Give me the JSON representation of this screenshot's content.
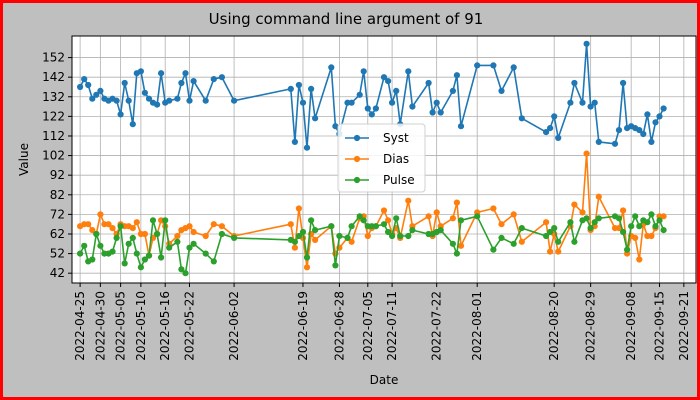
{
  "chart_data": {
    "type": "line",
    "title": "Using command line argument of 91",
    "xlabel": "Date",
    "ylabel": "Value",
    "ylim": [
      37,
      163
    ],
    "xlim": [
      "2022-04-23",
      "2022-09-24"
    ],
    "y_ticks": [
      42,
      52,
      62,
      72,
      82,
      92,
      102,
      112,
      122,
      132,
      142,
      152
    ],
    "x_ticks": [
      "2022-04-25",
      "2022-04-30",
      "2022-05-05",
      "2022-05-10",
      "2022-05-16",
      "2022-05-22",
      "2022-06-02",
      "2022-06-19",
      "2022-06-28",
      "2022-07-05",
      "2022-07-11",
      "2022-07-22",
      "2022-08-01",
      "2022-08-20",
      "2022-08-29",
      "2022-09-08",
      "2022-09-15",
      "2022-09-21"
    ],
    "grid": true,
    "legend_position": "center",
    "series": [
      {
        "name": "Syst",
        "color": "#1f77b4",
        "points": [
          [
            "2022-04-25",
            137
          ],
          [
            "2022-04-26",
            141
          ],
          [
            "2022-04-27",
            138
          ],
          [
            "2022-04-28",
            131
          ],
          [
            "2022-04-29",
            133
          ],
          [
            "2022-04-30",
            135
          ],
          [
            "2022-05-01",
            131
          ],
          [
            "2022-05-02",
            130
          ],
          [
            "2022-05-03",
            131
          ],
          [
            "2022-05-04",
            130
          ],
          [
            "2022-05-05",
            123
          ],
          [
            "2022-05-06",
            139
          ],
          [
            "2022-05-07",
            130
          ],
          [
            "2022-05-08",
            118
          ],
          [
            "2022-05-09",
            144
          ],
          [
            "2022-05-10",
            145
          ],
          [
            "2022-05-11",
            134
          ],
          [
            "2022-05-12",
            131
          ],
          [
            "2022-05-13",
            129
          ],
          [
            "2022-05-14",
            128
          ],
          [
            "2022-05-15",
            144
          ],
          [
            "2022-05-16",
            129
          ],
          [
            "2022-05-17",
            130
          ],
          [
            "2022-05-19",
            131
          ],
          [
            "2022-05-20",
            139
          ],
          [
            "2022-05-21",
            144
          ],
          [
            "2022-05-22",
            130
          ],
          [
            "2022-05-23",
            140
          ],
          [
            "2022-05-26",
            130
          ],
          [
            "2022-05-28",
            141
          ],
          [
            "2022-05-30",
            142
          ],
          [
            "2022-06-02",
            130
          ],
          [
            "2022-06-16",
            136
          ],
          [
            "2022-06-17",
            109
          ],
          [
            "2022-06-18",
            138
          ],
          [
            "2022-06-19",
            129
          ],
          [
            "2022-06-20",
            106
          ],
          [
            "2022-06-21",
            136
          ],
          [
            "2022-06-22",
            121
          ],
          [
            "2022-06-26",
            147
          ],
          [
            "2022-06-27",
            117
          ],
          [
            "2022-06-28",
            113
          ],
          [
            "2022-06-30",
            129
          ],
          [
            "2022-07-01",
            129
          ],
          [
            "2022-07-03",
            133
          ],
          [
            "2022-07-04",
            145
          ],
          [
            "2022-07-05",
            126
          ],
          [
            "2022-07-06",
            123
          ],
          [
            "2022-07-07",
            126
          ],
          [
            "2022-07-09",
            142
          ],
          [
            "2022-07-10",
            140
          ],
          [
            "2022-07-11",
            129
          ],
          [
            "2022-07-12",
            135
          ],
          [
            "2022-07-13",
            118
          ],
          [
            "2022-07-15",
            145
          ],
          [
            "2022-07-16",
            127
          ],
          [
            "2022-07-20",
            139
          ],
          [
            "2022-07-21",
            124
          ],
          [
            "2022-07-22",
            129
          ],
          [
            "2022-07-23",
            124
          ],
          [
            "2022-07-26",
            135
          ],
          [
            "2022-07-27",
            143
          ],
          [
            "2022-07-28",
            117
          ],
          [
            "2022-08-01",
            148
          ],
          [
            "2022-08-05",
            148
          ],
          [
            "2022-08-07",
            135
          ],
          [
            "2022-08-10",
            147
          ],
          [
            "2022-08-12",
            121
          ],
          [
            "2022-08-18",
            114
          ],
          [
            "2022-08-19",
            116
          ],
          [
            "2022-08-20",
            122
          ],
          [
            "2022-08-21",
            111
          ],
          [
            "2022-08-24",
            129
          ],
          [
            "2022-08-25",
            139
          ],
          [
            "2022-08-27",
            129
          ],
          [
            "2022-08-28",
            159
          ],
          [
            "2022-08-29",
            127
          ],
          [
            "2022-08-30",
            129
          ],
          [
            "2022-08-31",
            109
          ],
          [
            "2022-09-04",
            108
          ],
          [
            "2022-09-05",
            115
          ],
          [
            "2022-09-06",
            139
          ],
          [
            "2022-09-07",
            116
          ],
          [
            "2022-09-08",
            117
          ],
          [
            "2022-09-09",
            116
          ],
          [
            "2022-09-10",
            115
          ],
          [
            "2022-09-11",
            113
          ],
          [
            "2022-09-12",
            123
          ],
          [
            "2022-09-13",
            109
          ],
          [
            "2022-09-14",
            119
          ],
          [
            "2022-09-15",
            122
          ],
          [
            "2022-09-16",
            126
          ]
        ]
      },
      {
        "name": "Dias",
        "color": "#ff7f0e",
        "points": [
          [
            "2022-04-25",
            66
          ],
          [
            "2022-04-26",
            67
          ],
          [
            "2022-04-27",
            67
          ],
          [
            "2022-04-28",
            64
          ],
          [
            "2022-04-29",
            62
          ],
          [
            "2022-04-30",
            72
          ],
          [
            "2022-05-01",
            67
          ],
          [
            "2022-05-02",
            67
          ],
          [
            "2022-05-03",
            65
          ],
          [
            "2022-05-04",
            62
          ],
          [
            "2022-05-05",
            67
          ],
          [
            "2022-05-06",
            66
          ],
          [
            "2022-05-07",
            66
          ],
          [
            "2022-05-08",
            65
          ],
          [
            "2022-05-09",
            68
          ],
          [
            "2022-05-10",
            62
          ],
          [
            "2022-05-11",
            62
          ],
          [
            "2022-05-12",
            51
          ],
          [
            "2022-05-13",
            60
          ],
          [
            "2022-05-14",
            62
          ],
          [
            "2022-05-15",
            69
          ],
          [
            "2022-05-16",
            66
          ],
          [
            "2022-05-17",
            57
          ],
          [
            "2022-05-19",
            61
          ],
          [
            "2022-05-20",
            64
          ],
          [
            "2022-05-21",
            65
          ],
          [
            "2022-05-22",
            66
          ],
          [
            "2022-05-23",
            63
          ],
          [
            "2022-05-26",
            61
          ],
          [
            "2022-05-28",
            67
          ],
          [
            "2022-05-30",
            66
          ],
          [
            "2022-06-02",
            61
          ],
          [
            "2022-06-16",
            67
          ],
          [
            "2022-06-17",
            55
          ],
          [
            "2022-06-18",
            75
          ],
          [
            "2022-06-19",
            60
          ],
          [
            "2022-06-20",
            45
          ],
          [
            "2022-06-21",
            62
          ],
          [
            "2022-06-22",
            59
          ],
          [
            "2022-06-26",
            66
          ],
          [
            "2022-06-27",
            52
          ],
          [
            "2022-06-28",
            55
          ],
          [
            "2022-06-30",
            60
          ],
          [
            "2022-07-01",
            58
          ],
          [
            "2022-07-03",
            70
          ],
          [
            "2022-07-04",
            71
          ],
          [
            "2022-07-05",
            61
          ],
          [
            "2022-07-06",
            65
          ],
          [
            "2022-07-07",
            66
          ],
          [
            "2022-07-09",
            74
          ],
          [
            "2022-07-10",
            69
          ],
          [
            "2022-07-11",
            62
          ],
          [
            "2022-07-12",
            65
          ],
          [
            "2022-07-13",
            60
          ],
          [
            "2022-07-15",
            79
          ],
          [
            "2022-07-16",
            66
          ],
          [
            "2022-07-20",
            71
          ],
          [
            "2022-07-21",
            61
          ],
          [
            "2022-07-22",
            73
          ],
          [
            "2022-07-23",
            66
          ],
          [
            "2022-07-26",
            70
          ],
          [
            "2022-07-27",
            78
          ],
          [
            "2022-07-28",
            56
          ],
          [
            "2022-08-01",
            73
          ],
          [
            "2022-08-05",
            75
          ],
          [
            "2022-08-07",
            67
          ],
          [
            "2022-08-10",
            72
          ],
          [
            "2022-08-12",
            58
          ],
          [
            "2022-08-18",
            68
          ],
          [
            "2022-08-19",
            53
          ],
          [
            "2022-08-20",
            62
          ],
          [
            "2022-08-21",
            53
          ],
          [
            "2022-08-24",
            66
          ],
          [
            "2022-08-25",
            77
          ],
          [
            "2022-08-27",
            73
          ],
          [
            "2022-08-28",
            103
          ],
          [
            "2022-08-29",
            64
          ],
          [
            "2022-08-30",
            66
          ],
          [
            "2022-08-31",
            81
          ],
          [
            "2022-09-04",
            65
          ],
          [
            "2022-09-05",
            65
          ],
          [
            "2022-09-06",
            74
          ],
          [
            "2022-09-07",
            52
          ],
          [
            "2022-09-08",
            61
          ],
          [
            "2022-09-09",
            60
          ],
          [
            "2022-09-10",
            49
          ],
          [
            "2022-09-11",
            67
          ],
          [
            "2022-09-12",
            61
          ],
          [
            "2022-09-13",
            61
          ],
          [
            "2022-09-14",
            65
          ],
          [
            "2022-09-15",
            71
          ],
          [
            "2022-09-16",
            71
          ]
        ]
      },
      {
        "name": "Pulse",
        "color": "#2ca02c",
        "points": [
          [
            "2022-04-25",
            52
          ],
          [
            "2022-04-26",
            56
          ],
          [
            "2022-04-27",
            48
          ],
          [
            "2022-04-28",
            49
          ],
          [
            "2022-04-29",
            62
          ],
          [
            "2022-04-30",
            56
          ],
          [
            "2022-05-01",
            52
          ],
          [
            "2022-05-02",
            52
          ],
          [
            "2022-05-03",
            53
          ],
          [
            "2022-05-04",
            60
          ],
          [
            "2022-05-05",
            66
          ],
          [
            "2022-05-06",
            47
          ],
          [
            "2022-05-07",
            57
          ],
          [
            "2022-05-08",
            60
          ],
          [
            "2022-05-09",
            52
          ],
          [
            "2022-05-10",
            45
          ],
          [
            "2022-05-11",
            49
          ],
          [
            "2022-05-12",
            51
          ],
          [
            "2022-05-13",
            69
          ],
          [
            "2022-05-14",
            62
          ],
          [
            "2022-05-15",
            50
          ],
          [
            "2022-05-16",
            69
          ],
          [
            "2022-05-17",
            55
          ],
          [
            "2022-05-19",
            58
          ],
          [
            "2022-05-20",
            44
          ],
          [
            "2022-05-21",
            42
          ],
          [
            "2022-05-22",
            55
          ],
          [
            "2022-05-23",
            57
          ],
          [
            "2022-05-26",
            52
          ],
          [
            "2022-05-28",
            48
          ],
          [
            "2022-05-30",
            62
          ],
          [
            "2022-06-02",
            60
          ],
          [
            "2022-06-16",
            59
          ],
          [
            "2022-06-17",
            58
          ],
          [
            "2022-06-18",
            61
          ],
          [
            "2022-06-19",
            63
          ],
          [
            "2022-06-20",
            50
          ],
          [
            "2022-06-21",
            69
          ],
          [
            "2022-06-22",
            64
          ],
          [
            "2022-06-26",
            66
          ],
          [
            "2022-06-27",
            46
          ],
          [
            "2022-06-28",
            61
          ],
          [
            "2022-06-30",
            60
          ],
          [
            "2022-07-01",
            66
          ],
          [
            "2022-07-03",
            71
          ],
          [
            "2022-07-04",
            69
          ],
          [
            "2022-07-05",
            66
          ],
          [
            "2022-07-06",
            66
          ],
          [
            "2022-07-07",
            66
          ],
          [
            "2022-07-09",
            67
          ],
          [
            "2022-07-10",
            63
          ],
          [
            "2022-07-11",
            61
          ],
          [
            "2022-07-12",
            70
          ],
          [
            "2022-07-13",
            61
          ],
          [
            "2022-07-15",
            61
          ],
          [
            "2022-07-16",
            64
          ],
          [
            "2022-07-20",
            62
          ],
          [
            "2022-07-21",
            62
          ],
          [
            "2022-07-22",
            63
          ],
          [
            "2022-07-23",
            64
          ],
          [
            "2022-07-26",
            57
          ],
          [
            "2022-07-27",
            52
          ],
          [
            "2022-07-28",
            69
          ],
          [
            "2022-08-01",
            71
          ],
          [
            "2022-08-05",
            54
          ],
          [
            "2022-08-07",
            60
          ],
          [
            "2022-08-10",
            57
          ],
          [
            "2022-08-12",
            65
          ],
          [
            "2022-08-18",
            61
          ],
          [
            "2022-08-19",
            63
          ],
          [
            "2022-08-20",
            65
          ],
          [
            "2022-08-21",
            58
          ],
          [
            "2022-08-24",
            68
          ],
          [
            "2022-08-25",
            58
          ],
          [
            "2022-08-27",
            69
          ],
          [
            "2022-08-28",
            70
          ],
          [
            "2022-08-29",
            65
          ],
          [
            "2022-08-30",
            68
          ],
          [
            "2022-08-31",
            70
          ],
          [
            "2022-09-04",
            71
          ],
          [
            "2022-09-05",
            70
          ],
          [
            "2022-09-06",
            63
          ],
          [
            "2022-09-07",
            54
          ],
          [
            "2022-09-08",
            66
          ],
          [
            "2022-09-09",
            71
          ],
          [
            "2022-09-10",
            66
          ],
          [
            "2022-09-11",
            69
          ],
          [
            "2022-09-12",
            68
          ],
          [
            "2022-09-13",
            72
          ],
          [
            "2022-09-14",
            66
          ],
          [
            "2022-09-15",
            69
          ],
          [
            "2022-09-16",
            64
          ]
        ]
      }
    ]
  }
}
